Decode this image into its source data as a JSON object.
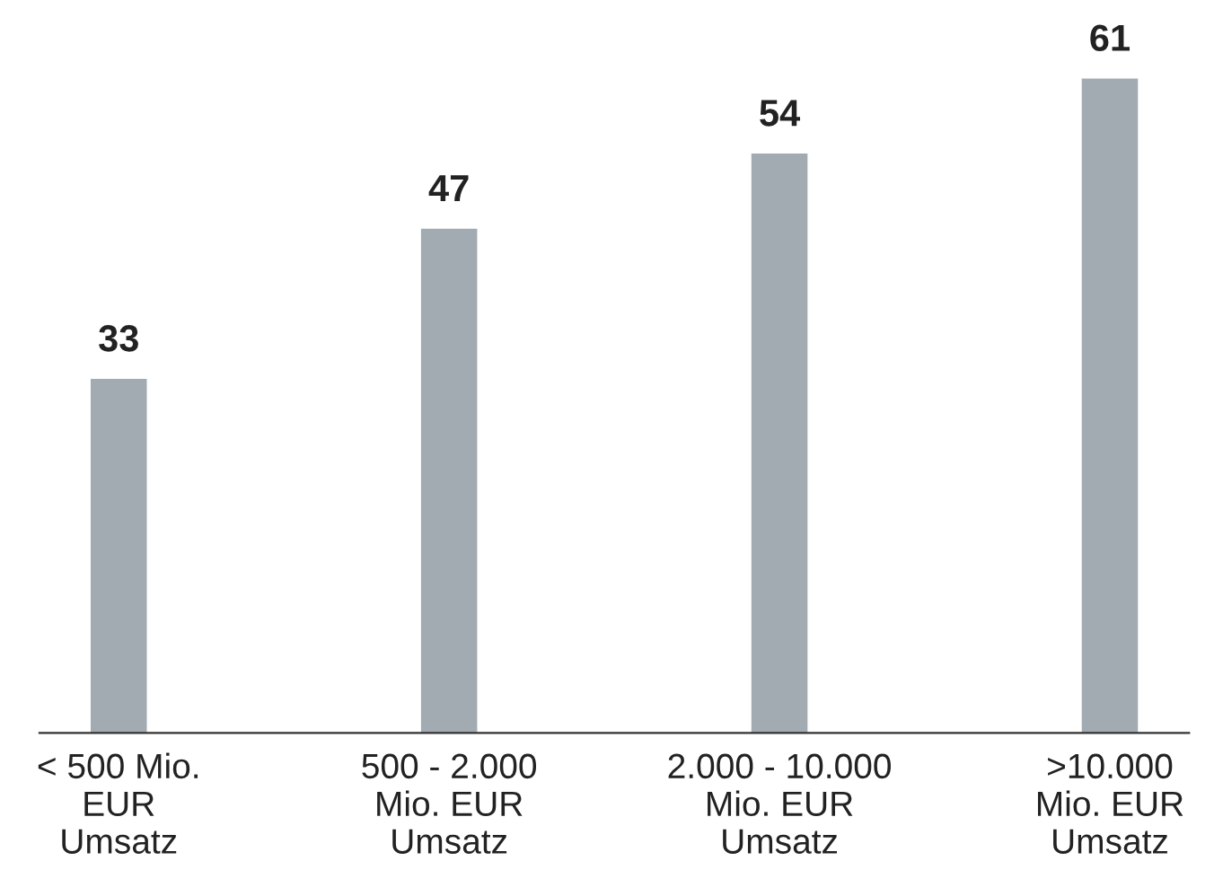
{
  "chart_data": {
    "type": "bar",
    "categories": [
      "< 500 Mio.\nEUR\nUmsatz",
      "500 - 2.000\nMio. EUR\nUmsatz",
      "2.000 - 10.000\nMio. EUR\nUmsatz",
      ">10.000\nMio. EUR\nUmsatz"
    ],
    "values": [
      33,
      47,
      54,
      61
    ],
    "color": "#a2abb2",
    "data_labels": true,
    "grid": false,
    "legend": false
  }
}
